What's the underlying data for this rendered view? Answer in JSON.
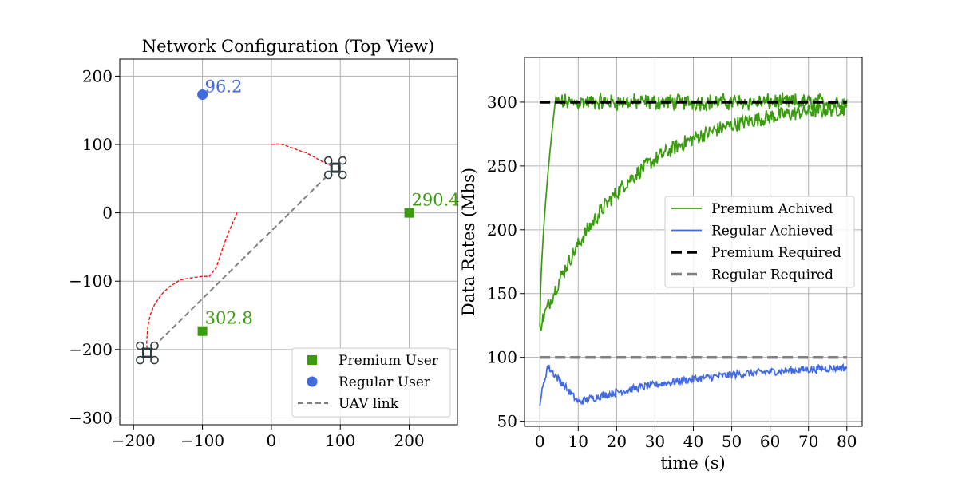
{
  "chart_data": [
    {
      "type": "scatter",
      "title": "Network Configuration (Top View)",
      "xlabel": "",
      "ylabel": "",
      "xlim": [
        -220,
        270
      ],
      "ylim": [
        -310,
        225
      ],
      "xticks": [
        -200,
        -100,
        0,
        100,
        200
      ],
      "yticks": [
        200,
        100,
        0,
        -100,
        -200,
        -300
      ],
      "grid": true,
      "legend_position": "bottom-right",
      "colors": {
        "premium": "#3a9b0e",
        "regular": "#4169e1",
        "link": "#808080",
        "path": "#ff0000",
        "uav": "#2f3b42"
      },
      "premium_users": [
        {
          "x": -100,
          "y": -173,
          "label": "302.8"
        },
        {
          "x": 200,
          "y": 0,
          "label": "290.4"
        }
      ],
      "regular_users": [
        {
          "x": -100,
          "y": 173,
          "label": "96.2"
        }
      ],
      "uavs": [
        {
          "x": -180,
          "y": -205
        },
        {
          "x": 93,
          "y": 66
        }
      ],
      "uav_link": [
        [
          -180,
          -205
        ],
        [
          93,
          66
        ]
      ],
      "uav_paths": [
        [
          [
            -50,
            0
          ],
          [
            -55,
            -12
          ],
          [
            -62,
            -28
          ],
          [
            -70,
            -50
          ],
          [
            -80,
            -80
          ],
          [
            -90,
            -93
          ],
          [
            -100,
            -93
          ],
          [
            -115,
            -95
          ],
          [
            -132,
            -98
          ],
          [
            -148,
            -108
          ],
          [
            -160,
            -120
          ],
          [
            -170,
            -135
          ],
          [
            -176,
            -150
          ],
          [
            -179,
            -165
          ],
          [
            -180,
            -175
          ],
          [
            -181,
            -190
          ],
          [
            -180,
            -205
          ]
        ],
        [
          [
            0,
            100
          ],
          [
            12,
            101
          ],
          [
            25,
            97
          ],
          [
            38,
            92
          ],
          [
            50,
            88
          ],
          [
            60,
            83
          ],
          [
            70,
            77
          ],
          [
            80,
            72
          ],
          [
            88,
            68
          ],
          [
            93,
            66
          ]
        ]
      ],
      "legend": [
        {
          "name": "Premium User",
          "kind": "square",
          "color": "#3a9b0e"
        },
        {
          "name": "Regular User",
          "kind": "circle",
          "color": "#4169e1"
        },
        {
          "name": "UAV link",
          "kind": "dashed",
          "color": "#808080"
        }
      ]
    },
    {
      "type": "line",
      "title": "",
      "xlabel": "time (s)",
      "ylabel": "Data Rates (Mbs)",
      "xlim": [
        -4,
        84
      ],
      "ylim": [
        46,
        335
      ],
      "xticks": [
        0,
        10,
        20,
        30,
        40,
        50,
        60,
        70,
        80
      ],
      "yticks": [
        50,
        100,
        150,
        200,
        250,
        300
      ],
      "grid": true,
      "legend_position": "center-right",
      "series": [
        {
          "name": "Premium Achived",
          "color": "#3a9b0e",
          "style": "solid",
          "model": "premium_fast",
          "params": {
            "start": 124,
            "level": 300,
            "rise_s": 4,
            "noise": 5
          }
        },
        {
          "name": "Premium Achived",
          "color": "#3a9b0e",
          "style": "solid",
          "model": "premium_slow",
          "params": {
            "start": 124,
            "level": 300,
            "tau_s": 22,
            "noise": 6
          },
          "show_in_legend": false
        },
        {
          "name": "Regular Achieved",
          "color": "#4169e1",
          "style": "solid",
          "model": "regular",
          "params": {
            "start": 65,
            "peak": 93,
            "dip": 65,
            "end": 92,
            "noise": 3
          }
        },
        {
          "name": "Premium Required",
          "color": "#000000",
          "style": "dashed",
          "x": [
            0,
            80
          ],
          "y": [
            300,
            300
          ]
        },
        {
          "name": "Regular Required",
          "color": "#808080",
          "style": "dashed",
          "x": [
            0,
            80
          ],
          "y": [
            100,
            100
          ]
        }
      ],
      "legend": [
        {
          "name": "Premium Achived",
          "color": "#3a9b0e",
          "kind": "line"
        },
        {
          "name": "Regular Achieved",
          "color": "#4169e1",
          "kind": "line"
        },
        {
          "name": "Premium Required",
          "color": "#000000",
          "kind": "dashed"
        },
        {
          "name": "Regular Required",
          "color": "#808080",
          "kind": "dashed"
        }
      ]
    }
  ]
}
